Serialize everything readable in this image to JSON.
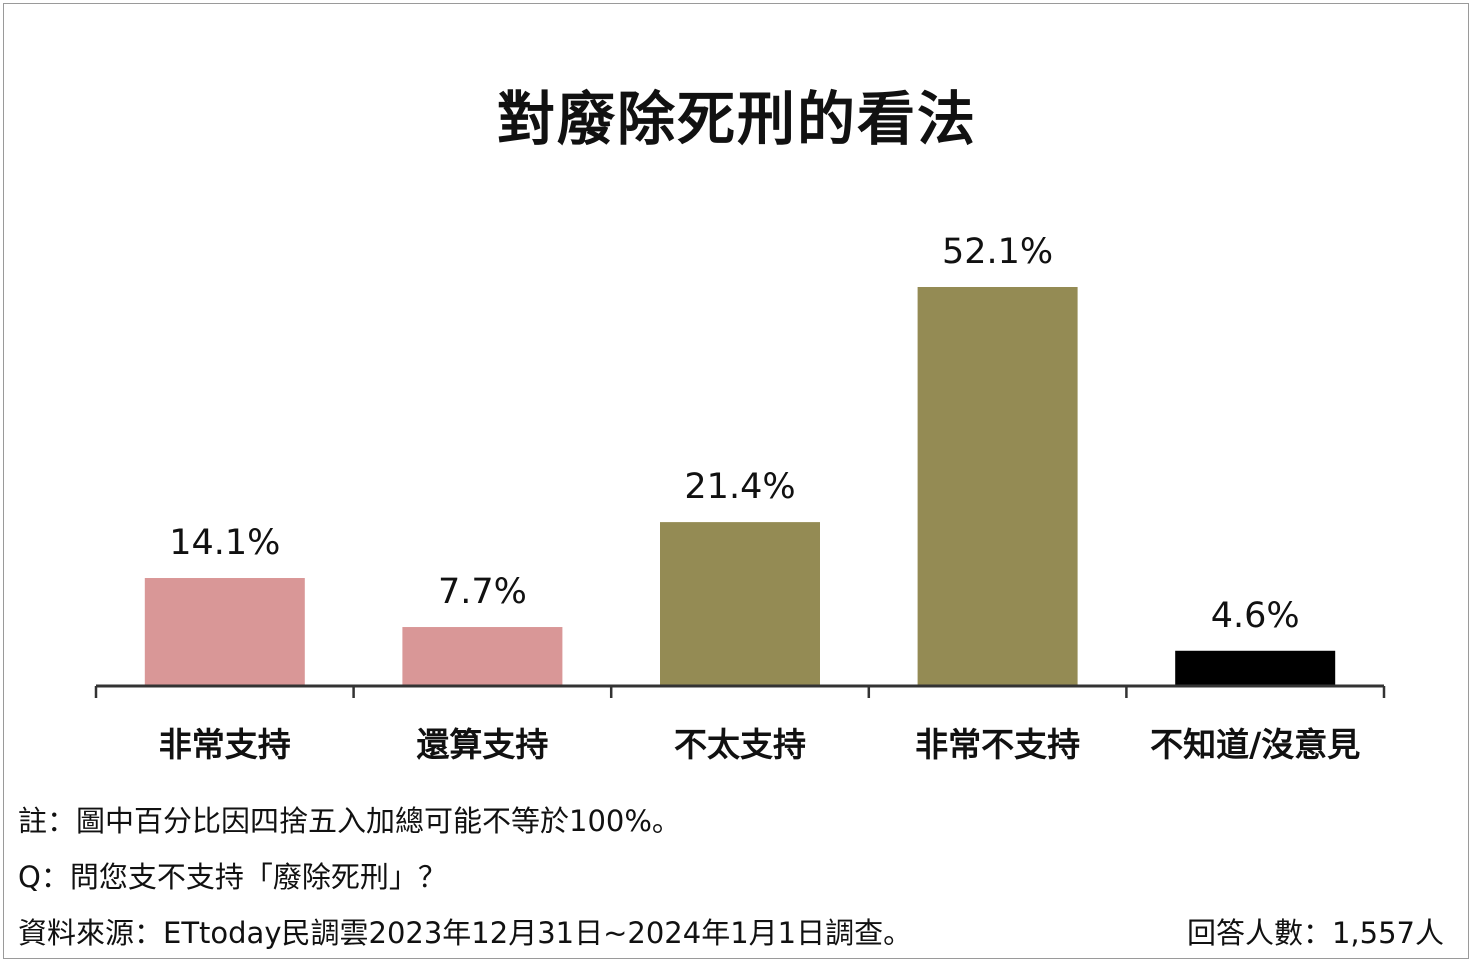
{
  "chart_data": {
    "type": "bar",
    "title": "對廢除死刑的看法",
    "categories": [
      "非常支持",
      "還算支持",
      "不太支持",
      "非常不支持",
      "不知道/沒意見"
    ],
    "values": [
      14.1,
      7.7,
      21.4,
      52.1,
      4.6
    ],
    "value_labels": [
      "14.1%",
      "7.7%",
      "21.4%",
      "52.1%",
      "4.6%"
    ],
    "colors": [
      "#d99797",
      "#d99797",
      "#948b54",
      "#948b54",
      "#000000"
    ],
    "xlabel": "",
    "ylabel": "",
    "ylim": [
      0,
      52.1
    ],
    "grid": false,
    "legend": "none"
  },
  "notes": {
    "note": "註：圖中百分比因四捨五入加總可能不等於100%。",
    "question": "Q：問您支不支持「廢除死刑」？",
    "source": "資料來源：ETtoday民調雲2023年12月31日~2024年1月1日調查。",
    "respondents": "回答人數：1,557人"
  }
}
